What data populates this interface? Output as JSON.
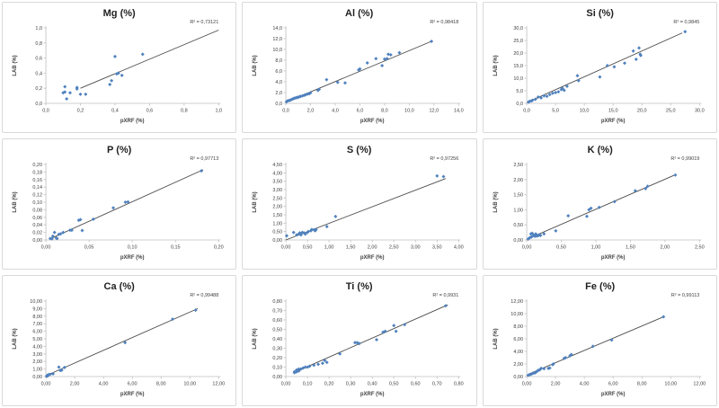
{
  "page": {
    "background": "#ffffff"
  },
  "style": {
    "marker_color": "#4F81BD",
    "trend_color": "#4a4a4a",
    "axis_color": "#bfbfbf",
    "title_color": "#1f1f1f",
    "tick_color": "#404040",
    "r2_color": "#404040"
  },
  "chart_data": [
    {
      "type": "scatter",
      "title": "Mg (%)",
      "r2_label": "R² = 0,73121",
      "xlabel": "pXRF (%)",
      "ylabel": "LAB (%)",
      "xlim": [
        0,
        1.0
      ],
      "ylim": [
        0,
        1.0
      ],
      "xstep": 0.2,
      "ystep": 0.2,
      "decimals": 1,
      "trend": [
        [
          0.2,
          0.2
        ],
        [
          1.0,
          0.97
        ]
      ],
      "points": [
        [
          0.1,
          0.14
        ],
        [
          0.11,
          0.15
        ],
        [
          0.11,
          0.22
        ],
        [
          0.12,
          0.06
        ],
        [
          0.14,
          0.14
        ],
        [
          0.18,
          0.19
        ],
        [
          0.18,
          0.21
        ],
        [
          0.2,
          0.12
        ],
        [
          0.23,
          0.12
        ],
        [
          0.37,
          0.25
        ],
        [
          0.38,
          0.3
        ],
        [
          0.4,
          0.62
        ],
        [
          0.41,
          0.39
        ],
        [
          0.42,
          0.4
        ],
        [
          0.44,
          0.37
        ],
        [
          0.56,
          0.65
        ]
      ]
    },
    {
      "type": "scatter",
      "title": "Al (%)",
      "r2_label": "R² = 0,98418",
      "xlabel": "pXRF (%)",
      "ylabel": "LAB (%)",
      "xlim": [
        0,
        14.0
      ],
      "ylim": [
        0,
        14.0
      ],
      "xstep": 2.0,
      "ystep": 2.0,
      "decimals": 1,
      "trend": [
        [
          0.2,
          0.4
        ],
        [
          11.8,
          11.5
        ]
      ],
      "points": [
        [
          0.05,
          0.3
        ],
        [
          0.1,
          0.4
        ],
        [
          0.2,
          0.5
        ],
        [
          0.3,
          0.55
        ],
        [
          0.4,
          0.65
        ],
        [
          0.5,
          0.75
        ],
        [
          0.6,
          0.85
        ],
        [
          0.7,
          0.95
        ],
        [
          0.8,
          1.0
        ],
        [
          0.9,
          1.1
        ],
        [
          1.0,
          1.1
        ],
        [
          1.1,
          1.25
        ],
        [
          1.2,
          1.3
        ],
        [
          1.35,
          1.4
        ],
        [
          1.5,
          1.5
        ],
        [
          1.6,
          1.6
        ],
        [
          1.75,
          1.7
        ],
        [
          1.9,
          1.8
        ],
        [
          2.0,
          1.95
        ],
        [
          2.6,
          2.4
        ],
        [
          2.7,
          2.6
        ],
        [
          3.3,
          4.4
        ],
        [
          4.2,
          3.9
        ],
        [
          4.8,
          3.8
        ],
        [
          5.9,
          6.2
        ],
        [
          6.0,
          6.4
        ],
        [
          6.6,
          7.5
        ],
        [
          7.3,
          8.3
        ],
        [
          7.8,
          7.0
        ],
        [
          8.0,
          8.2
        ],
        [
          8.2,
          8.3
        ],
        [
          8.3,
          9.1
        ],
        [
          8.5,
          9.0
        ],
        [
          9.2,
          9.4
        ],
        [
          11.8,
          11.5
        ]
      ]
    },
    {
      "type": "scatter",
      "title": "Si (%)",
      "r2_label": "R² = 0,9845",
      "xlabel": "pXRF (%)",
      "ylabel": "LAB (%)",
      "xlim": [
        0,
        30.0
      ],
      "ylim": [
        0,
        30.0
      ],
      "xstep": 5.0,
      "ystep": 5.0,
      "decimals": 1,
      "trend": [
        [
          0.3,
          0.6
        ],
        [
          27.0,
          28.0
        ]
      ],
      "points": [
        [
          0.3,
          0.5
        ],
        [
          0.5,
          0.8
        ],
        [
          0.8,
          1.0
        ],
        [
          1.0,
          1.2
        ],
        [
          1.5,
          1.6
        ],
        [
          2.0,
          2.5
        ],
        [
          2.5,
          2.2
        ],
        [
          3.0,
          3.0
        ],
        [
          3.5,
          2.8
        ],
        [
          4.0,
          3.5
        ],
        [
          4.5,
          4.0
        ],
        [
          5.0,
          4.3
        ],
        [
          5.5,
          4.6
        ],
        [
          6.0,
          5.5
        ],
        [
          6.2,
          6.0
        ],
        [
          6.5,
          5.2
        ],
        [
          7.0,
          6.8
        ],
        [
          8.8,
          11.0
        ],
        [
          9.0,
          9.0
        ],
        [
          12.7,
          10.5
        ],
        [
          14.0,
          15.0
        ],
        [
          15.2,
          14.5
        ],
        [
          17.0,
          16.0
        ],
        [
          18.5,
          20.8
        ],
        [
          19.0,
          17.5
        ],
        [
          19.5,
          22.0
        ],
        [
          19.7,
          19.5
        ],
        [
          19.8,
          19.0
        ],
        [
          27.5,
          28.5
        ]
      ]
    },
    {
      "type": "scatter",
      "title": "P (%)",
      "r2_label": "R² = 0,97713",
      "xlabel": "pXRF (%)",
      "ylabel": "LAB (%)",
      "xlim": [
        0,
        0.2
      ],
      "ylim": [
        0,
        0.2
      ],
      "xstep": 0.05,
      "ystep": 0.02,
      "decimals": 2,
      "trend": [
        [
          0.006,
          0.004
        ],
        [
          0.182,
          0.186
        ]
      ],
      "points": [
        [
          0.005,
          0.004
        ],
        [
          0.007,
          0.003
        ],
        [
          0.008,
          0.01
        ],
        [
          0.01,
          0.02
        ],
        [
          0.012,
          0.005
        ],
        [
          0.013,
          0.004
        ],
        [
          0.015,
          0.015
        ],
        [
          0.017,
          0.016
        ],
        [
          0.02,
          0.02
        ],
        [
          0.028,
          0.026
        ],
        [
          0.03,
          0.026
        ],
        [
          0.038,
          0.052
        ],
        [
          0.04,
          0.054
        ],
        [
          0.042,
          0.025
        ],
        [
          0.055,
          0.055
        ],
        [
          0.078,
          0.085
        ],
        [
          0.092,
          0.1
        ],
        [
          0.095,
          0.101
        ],
        [
          0.18,
          0.183
        ]
      ]
    },
    {
      "type": "scatter",
      "title": "S (%)",
      "r2_label": "R² = 0,97256",
      "xlabel": "pXRF (%)",
      "ylabel": "LAB (%)",
      "xlim": [
        0,
        4.0
      ],
      "ylim": [
        0,
        4.5
      ],
      "xstep": 0.5,
      "ystep": 0.5,
      "decimals": 2,
      "trend": [
        [
          0.0,
          0.0
        ],
        [
          3.7,
          3.66
        ]
      ],
      "points": [
        [
          0.02,
          0.25
        ],
        [
          0.18,
          0.45
        ],
        [
          0.25,
          0.3
        ],
        [
          0.3,
          0.35
        ],
        [
          0.32,
          0.42
        ],
        [
          0.35,
          0.3
        ],
        [
          0.38,
          0.45
        ],
        [
          0.42,
          0.42
        ],
        [
          0.45,
          0.35
        ],
        [
          0.5,
          0.45
        ],
        [
          0.52,
          0.5
        ],
        [
          0.58,
          0.55
        ],
        [
          0.6,
          0.62
        ],
        [
          0.65,
          0.6
        ],
        [
          0.68,
          0.55
        ],
        [
          0.7,
          0.62
        ],
        [
          0.95,
          0.8
        ],
        [
          1.15,
          1.4
        ],
        [
          3.5,
          3.82
        ],
        [
          3.65,
          3.78
        ]
      ]
    },
    {
      "type": "scatter",
      "title": "K (%)",
      "r2_label": "R² = 0,99019",
      "xlabel": "pXRF (%)",
      "ylabel": "LAB (%)",
      "xlim": [
        0,
        2.5
      ],
      "ylim": [
        0,
        2.5
      ],
      "xstep": 0.5,
      "ystep": 0.5,
      "decimals": 2,
      "trend": [
        [
          0.02,
          0.04
        ],
        [
          2.15,
          2.16
        ]
      ],
      "points": [
        [
          0.02,
          0.03
        ],
        [
          0.03,
          0.05
        ],
        [
          0.05,
          0.08
        ],
        [
          0.06,
          0.2
        ],
        [
          0.07,
          0.1
        ],
        [
          0.08,
          0.22
        ],
        [
          0.1,
          0.15
        ],
        [
          0.12,
          0.12
        ],
        [
          0.13,
          0.2
        ],
        [
          0.15,
          0.13
        ],
        [
          0.17,
          0.15
        ],
        [
          0.18,
          0.17
        ],
        [
          0.2,
          0.15
        ],
        [
          0.25,
          0.2
        ],
        [
          0.42,
          0.3
        ],
        [
          0.6,
          0.8
        ],
        [
          0.87,
          0.78
        ],
        [
          0.9,
          1.0
        ],
        [
          0.93,
          1.05
        ],
        [
          1.05,
          1.08
        ],
        [
          1.27,
          1.27
        ],
        [
          1.57,
          1.63
        ],
        [
          1.72,
          1.7
        ],
        [
          1.75,
          1.78
        ],
        [
          2.15,
          2.15
        ]
      ]
    },
    {
      "type": "scatter",
      "title": "Ca (%)",
      "r2_label": "R² = 0,99488",
      "xlabel": "pXRF (%)",
      "ylabel": "LAB (%)",
      "xlim": [
        0,
        12.0
      ],
      "ylim": [
        0,
        10.0
      ],
      "xstep": 2.0,
      "ystep": 1.0,
      "decimals": 2,
      "trend": [
        [
          0.05,
          0.15
        ],
        [
          10.55,
          9.0
        ]
      ],
      "points": [
        [
          0.05,
          0.05
        ],
        [
          0.08,
          0.1
        ],
        [
          0.1,
          0.15
        ],
        [
          0.12,
          0.08
        ],
        [
          0.15,
          0.2
        ],
        [
          0.2,
          0.25
        ],
        [
          0.3,
          0.3
        ],
        [
          0.5,
          0.35
        ],
        [
          0.9,
          1.25
        ],
        [
          1.0,
          0.8
        ],
        [
          1.1,
          0.85
        ],
        [
          1.3,
          1.2
        ],
        [
          5.5,
          4.5
        ],
        [
          8.8,
          7.6
        ],
        [
          10.4,
          8.8
        ]
      ]
    },
    {
      "type": "scatter",
      "title": "Ti (%)",
      "r2_label": "R² = 0,9931",
      "xlabel": "pXRF (%)",
      "ylabel": "LAB (%)",
      "xlim": [
        0,
        0.8
      ],
      "ylim": [
        0,
        0.8
      ],
      "xstep": 0.1,
      "ystep": 0.1,
      "decimals": 2,
      "trend": [
        [
          0.035,
          0.04
        ],
        [
          0.75,
          0.76
        ]
      ],
      "points": [
        [
          0.04,
          0.04
        ],
        [
          0.04,
          0.05
        ],
        [
          0.05,
          0.05
        ],
        [
          0.05,
          0.06
        ],
        [
          0.05,
          0.07
        ],
        [
          0.06,
          0.06
        ],
        [
          0.06,
          0.08
        ],
        [
          0.07,
          0.08
        ],
        [
          0.08,
          0.09
        ],
        [
          0.09,
          0.1
        ],
        [
          0.1,
          0.1
        ],
        [
          0.11,
          0.11
        ],
        [
          0.13,
          0.12
        ],
        [
          0.15,
          0.13
        ],
        [
          0.17,
          0.14
        ],
        [
          0.18,
          0.17
        ],
        [
          0.19,
          0.15
        ],
        [
          0.25,
          0.24
        ],
        [
          0.32,
          0.36
        ],
        [
          0.33,
          0.36
        ],
        [
          0.34,
          0.35
        ],
        [
          0.42,
          0.39
        ],
        [
          0.45,
          0.47
        ],
        [
          0.46,
          0.48
        ],
        [
          0.5,
          0.54
        ],
        [
          0.51,
          0.48
        ],
        [
          0.55,
          0.55
        ],
        [
          0.74,
          0.75
        ]
      ]
    },
    {
      "type": "scatter",
      "title": "Fe (%)",
      "r2_label": "R² = 0,99113",
      "xlabel": "pXRF (%)",
      "ylabel": "LAB (%)",
      "xlim": [
        0,
        12.0
      ],
      "ylim": [
        0,
        12.0
      ],
      "xstep": 2.0,
      "ystep": 2.0,
      "decimals": 2,
      "trend": [
        [
          0.1,
          0.35
        ],
        [
          9.55,
          9.55
        ]
      ],
      "points": [
        [
          0.1,
          0.2
        ],
        [
          0.2,
          0.3
        ],
        [
          0.3,
          0.35
        ],
        [
          0.4,
          0.5
        ],
        [
          0.5,
          0.55
        ],
        [
          0.6,
          0.6
        ],
        [
          0.7,
          0.8
        ],
        [
          0.8,
          1.0
        ],
        [
          0.9,
          1.05
        ],
        [
          1.0,
          1.3
        ],
        [
          1.2,
          1.25
        ],
        [
          1.5,
          1.3
        ],
        [
          1.6,
          1.35
        ],
        [
          1.8,
          1.9
        ],
        [
          1.85,
          2.0
        ],
        [
          2.6,
          2.9
        ],
        [
          2.7,
          3.0
        ],
        [
          3.0,
          3.3
        ],
        [
          3.1,
          3.5
        ],
        [
          4.6,
          4.8
        ],
        [
          5.9,
          5.8
        ],
        [
          9.5,
          9.5
        ]
      ]
    }
  ]
}
